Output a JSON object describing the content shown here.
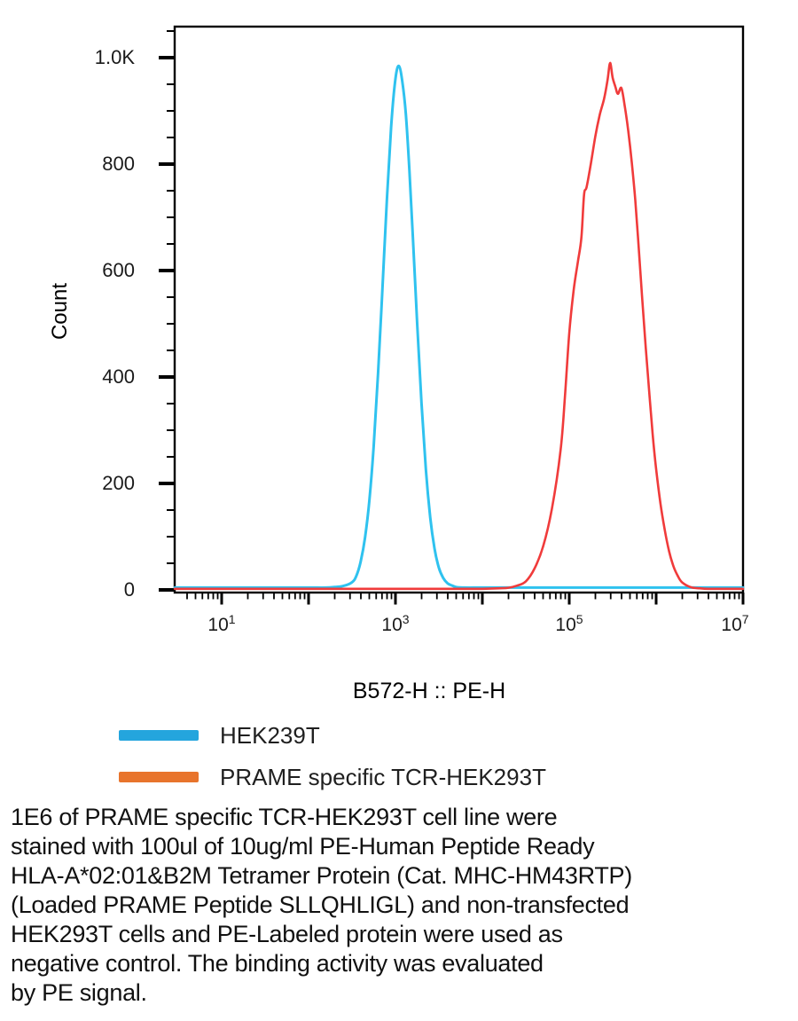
{
  "chart_data": {
    "type": "line",
    "subtype": "flow-cytometry-histogram",
    "title": "",
    "xlabel": "B572-H :: PE-H",
    "ylabel": "Count",
    "x_scale": "log10",
    "x_range_log10": [
      0.46,
      7.0
    ],
    "x_major_ticks_log10": [
      1,
      2,
      3,
      4,
      5,
      6,
      7
    ],
    "x_labeled_tick_exponents": [
      "1",
      "3",
      "5",
      "7"
    ],
    "x_tick_mantissa": "10",
    "y_range": [
      0,
      1050
    ],
    "y_major_ticks": [
      {
        "value": 0,
        "label": "0"
      },
      {
        "value": 200,
        "label": "200"
      },
      {
        "value": 400,
        "label": "400"
      },
      {
        "value": 600,
        "label": "600"
      },
      {
        "value": 800,
        "label": "800"
      },
      {
        "value": 1000,
        "label": "1.0K"
      }
    ],
    "y_minor_step": 50,
    "grid": false,
    "legend_position": "below-left",
    "frame_color": "#000000",
    "series": [
      {
        "name": "HEK239T",
        "color": "#2fc2ef",
        "peak_log10": 3.04,
        "peak_x_value": 1100,
        "peak_count": 980,
        "points": [
          [
            0.46,
            0
          ],
          [
            1.0,
            0
          ],
          [
            1.5,
            0
          ],
          [
            2.0,
            0
          ],
          [
            2.2,
            0
          ],
          [
            2.3,
            1
          ],
          [
            2.4,
            3
          ],
          [
            2.5,
            10
          ],
          [
            2.55,
            22
          ],
          [
            2.6,
            49
          ],
          [
            2.65,
            94
          ],
          [
            2.7,
            164
          ],
          [
            2.75,
            267
          ],
          [
            2.8,
            403
          ],
          [
            2.85,
            561
          ],
          [
            2.9,
            724
          ],
          [
            2.95,
            865
          ],
          [
            3.0,
            956
          ],
          [
            3.04,
            980
          ],
          [
            3.08,
            950
          ],
          [
            3.12,
            888
          ],
          [
            3.16,
            785
          ],
          [
            3.2,
            660
          ],
          [
            3.25,
            496
          ],
          [
            3.3,
            346
          ],
          [
            3.35,
            222
          ],
          [
            3.4,
            132
          ],
          [
            3.45,
            73
          ],
          [
            3.5,
            37
          ],
          [
            3.55,
            18
          ],
          [
            3.6,
            8
          ],
          [
            3.65,
            4
          ],
          [
            3.7,
            1
          ],
          [
            3.8,
            0
          ],
          [
            4.0,
            0
          ],
          [
            4.5,
            0
          ],
          [
            5.0,
            0
          ],
          [
            5.5,
            0
          ],
          [
            6.0,
            0
          ],
          [
            6.5,
            0
          ],
          [
            7.0,
            0
          ]
        ]
      },
      {
        "name": "PRAME specific TCR-HEK293T",
        "color": "#f03b3b",
        "peak_log10": 5.47,
        "peak_x_value": 295000,
        "peak_count": 988,
        "points": [
          [
            0.46,
            0
          ],
          [
            1.0,
            0
          ],
          [
            2.0,
            0
          ],
          [
            3.0,
            0
          ],
          [
            3.5,
            0
          ],
          [
            4.0,
            0
          ],
          [
            4.2,
            1
          ],
          [
            4.3,
            2
          ],
          [
            4.4,
            6
          ],
          [
            4.5,
            14
          ],
          [
            4.6,
            38
          ],
          [
            4.7,
            80
          ],
          [
            4.8,
            150
          ],
          [
            4.9,
            260
          ],
          [
            4.95,
            360
          ],
          [
            5.0,
            480
          ],
          [
            5.05,
            560
          ],
          [
            5.1,
            615
          ],
          [
            5.14,
            660
          ],
          [
            5.17,
            740
          ],
          [
            5.2,
            755
          ],
          [
            5.25,
            800
          ],
          [
            5.3,
            850
          ],
          [
            5.35,
            890
          ],
          [
            5.4,
            920
          ],
          [
            5.44,
            955
          ],
          [
            5.47,
            988
          ],
          [
            5.5,
            960
          ],
          [
            5.53,
            944
          ],
          [
            5.56,
            930
          ],
          [
            5.6,
            941
          ],
          [
            5.64,
            906
          ],
          [
            5.68,
            860
          ],
          [
            5.72,
            800
          ],
          [
            5.76,
            730
          ],
          [
            5.8,
            640
          ],
          [
            5.84,
            545
          ],
          [
            5.88,
            455
          ],
          [
            5.92,
            370
          ],
          [
            5.96,
            290
          ],
          [
            6.0,
            225
          ],
          [
            6.05,
            160
          ],
          [
            6.1,
            110
          ],
          [
            6.15,
            70
          ],
          [
            6.2,
            42
          ],
          [
            6.25,
            24
          ],
          [
            6.3,
            12
          ],
          [
            6.4,
            3
          ],
          [
            6.5,
            1
          ],
          [
            6.6,
            0
          ],
          [
            6.8,
            0
          ],
          [
            7.0,
            0
          ]
        ]
      }
    ]
  },
  "legend": {
    "items": [
      {
        "label": "HEK239T",
        "color": "#24a5dd"
      },
      {
        "label": "PRAME specific TCR-HEK293T",
        "color": "#e8742c"
      }
    ]
  },
  "caption": {
    "text": "1E6 of PRAME specific TCR-HEK293T cell line were\nstained with 100ul of 10ug/ml PE-Human Peptide Ready\nHLA-A*02:01&B2M Tetramer Protein (Cat. MHC-HM43RTP)\n(Loaded PRAME Peptide SLLQHLIGL) and non-transfected\nHEK293T cells and PE-Labeled protein were used as\nnegative control. The binding activity was evaluated\nby PE signal."
  }
}
